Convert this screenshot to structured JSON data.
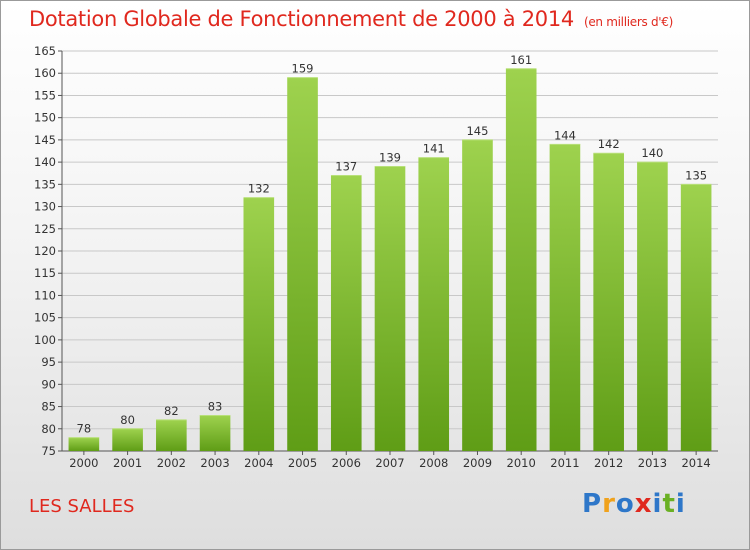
{
  "header": {
    "title": "Dotation Globale de Fonctionnement de 2000 à 2014",
    "unit": "(en milliers d'€)"
  },
  "footer": {
    "commune": "LES SALLES",
    "logo_letters": [
      "P",
      "r",
      "o",
      "x",
      "i",
      "t",
      "i"
    ],
    "logo_colors": [
      "#2e77c9",
      "#f0a21c",
      "#2e77c9",
      "#e0281e",
      "#2e77c9",
      "#6ab023",
      "#2e77c9"
    ]
  },
  "colors": {
    "title": "#e0281e",
    "bar_light": "#9ed24e",
    "bar_dark": "#5f9d16",
    "grid": "#c8c8c8"
  },
  "chart_data": {
    "type": "bar",
    "categories": [
      "2000",
      "2001",
      "2002",
      "2003",
      "2004",
      "2005",
      "2006",
      "2007",
      "2008",
      "2009",
      "2010",
      "2011",
      "2012",
      "2013",
      "2014"
    ],
    "values": [
      78,
      80,
      82,
      83,
      132,
      159,
      137,
      139,
      141,
      145,
      161,
      144,
      142,
      140,
      135
    ],
    "title": "Dotation Globale de Fonctionnement de 2000 à 2014",
    "ylim": [
      75,
      165
    ],
    "yticks": [
      75,
      80,
      85,
      90,
      95,
      100,
      105,
      110,
      115,
      120,
      125,
      130,
      135,
      140,
      145,
      150,
      155,
      160,
      165
    ],
    "grid": true,
    "data_labels": true
  }
}
